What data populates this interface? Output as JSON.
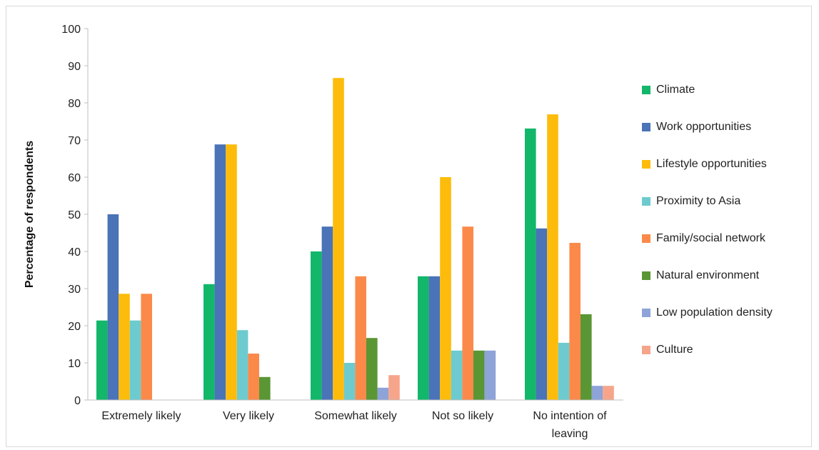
{
  "chart_data": {
    "type": "bar",
    "ylabel": "Percentage of respondents",
    "xlabel": "",
    "ylim": [
      0,
      100
    ],
    "yticks": [
      0,
      10,
      20,
      30,
      40,
      50,
      60,
      70,
      80,
      90,
      100
    ],
    "grid": false,
    "legend_position": "right",
    "categories": [
      [
        "Extremely likely"
      ],
      [
        "Very likely"
      ],
      [
        "Somewhat likely"
      ],
      [
        "Not so likely"
      ],
      [
        "No intention of",
        "leaving"
      ]
    ],
    "series": [
      {
        "name": "Climate",
        "color": "#12b76a",
        "values": [
          21.4,
          31.2,
          40.0,
          33.3,
          73.1
        ]
      },
      {
        "name": "Work opportunities",
        "color": "#4a73b8",
        "values": [
          50.0,
          68.8,
          46.7,
          33.3,
          46.2
        ]
      },
      {
        "name": "Lifestyle opportunities",
        "color": "#fdbc0b",
        "values": [
          28.6,
          68.8,
          86.7,
          60.0,
          76.9
        ]
      },
      {
        "name": "Proximity to Asia",
        "color": "#6dcbcf",
        "values": [
          21.4,
          18.8,
          10.0,
          13.3,
          15.4
        ]
      },
      {
        "name": "Family/social network",
        "color": "#fb8a4a",
        "values": [
          28.6,
          12.5,
          33.3,
          46.7,
          42.3
        ]
      },
      {
        "name": "Natural environment",
        "color": "#5a9634",
        "values": [
          0,
          6.2,
          16.7,
          13.3,
          23.1
        ]
      },
      {
        "name": "Low population density",
        "color": "#8ea3d8",
        "values": [
          0,
          0,
          3.3,
          13.3,
          3.8
        ]
      },
      {
        "name": "Culture",
        "color": "#f6a58b",
        "values": [
          0,
          0,
          6.7,
          0,
          3.8
        ]
      }
    ]
  }
}
